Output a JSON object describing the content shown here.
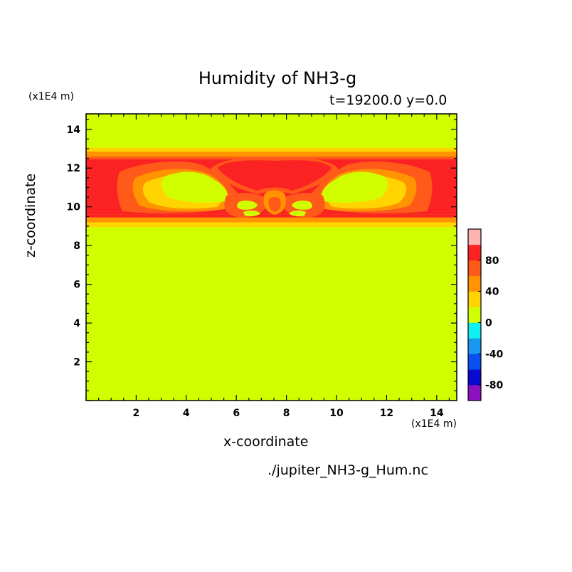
{
  "chart_data": {
    "type": "heatmap",
    "title": "Humidity of NH3-g",
    "subtitle": "t=19200.0 y=0.0",
    "xlabel": "x-coordinate",
    "ylabel": "z-coordinate",
    "x_scale_label": "(x1E4 m)",
    "y_scale_label": "(x1E4 m)",
    "footer": "./jupiter_NH3-g_Hum.nc",
    "xlim": [
      0,
      14.8
    ],
    "ylim": [
      0,
      14.8
    ],
    "x_ticks": [
      2,
      4,
      6,
      8,
      10,
      12,
      14
    ],
    "y_ticks": [
      2,
      4,
      6,
      8,
      10,
      12,
      14
    ],
    "colorbar": {
      "levels": [
        -100,
        -80,
        -60,
        -40,
        -20,
        0,
        20,
        40,
        60,
        80,
        100
      ],
      "labels": [
        -80,
        -40,
        0,
        40,
        80
      ],
      "colors": [
        "#8a10c0",
        "#0a0ad0",
        "#0a50f0",
        "#1898f0",
        "#10f0f0",
        "#d2ff00",
        "#ffd400",
        "#ff9400",
        "#ff5a1a",
        "#fa2222",
        "#ffb4b4"
      ]
    },
    "background_value_range": [
      0,
      20
    ],
    "layers": [
      {
        "z_range": [
          8.95,
          9.2
        ],
        "value_range": [
          20,
          40
        ]
      },
      {
        "z_range": [
          9.2,
          9.45
        ],
        "value_range": [
          40,
          60
        ]
      },
      {
        "z_range": [
          9.45,
          9.6
        ],
        "value_range": [
          80,
          100
        ]
      },
      {
        "z_range": [
          9.6,
          12.45
        ],
        "value_range": [
          80,
          100
        ]
      },
      {
        "z_range": [
          12.45,
          12.6
        ],
        "value_range": [
          60,
          80
        ]
      },
      {
        "z_range": [
          12.6,
          12.85
        ],
        "value_range": [
          40,
          60
        ]
      },
      {
        "z_range": [
          12.85,
          13.05
        ],
        "value_range": [
          20,
          40
        ]
      }
    ]
  }
}
